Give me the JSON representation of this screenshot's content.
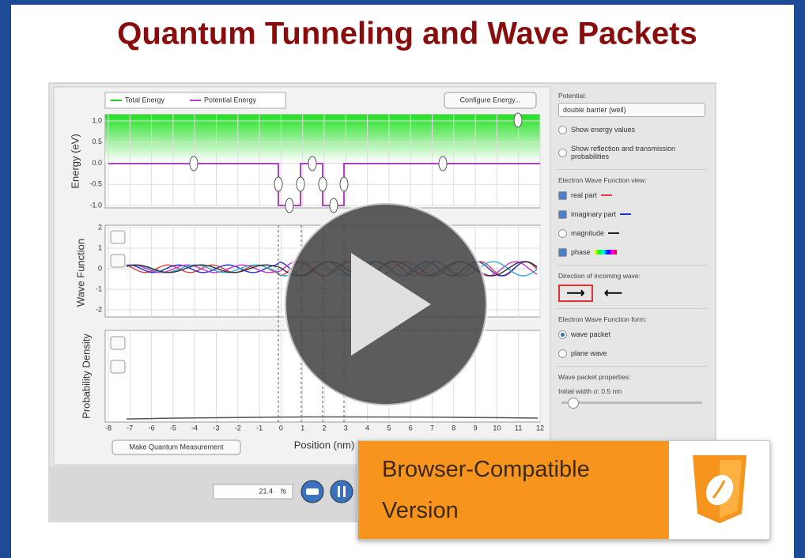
{
  "title": "Quantum Tunneling and Wave Packets",
  "simulation": {
    "legend": [
      "Total Energy",
      "Potential Energy"
    ],
    "configure_button": "Configure Energy...",
    "energy_axis": {
      "label": "Energy (eV)",
      "ticks": [
        "1.0",
        "0.5",
        "0.0",
        "-0.5",
        "-1.0"
      ]
    },
    "wave_axis": {
      "label": "Wave Function",
      "ticks": [
        "2",
        "1",
        "0",
        "-1",
        "-2"
      ]
    },
    "density_axis": {
      "label": "Probability Density"
    },
    "position_axis": {
      "label": "Position (nm)",
      "ticks": [
        "-8",
        "-7",
        "-6",
        "-5",
        "-4",
        "-3",
        "-2",
        "-1",
        "0",
        "1",
        "2",
        "3",
        "4",
        "5",
        "6",
        "7",
        "8",
        "9",
        "10",
        "11",
        "12"
      ]
    },
    "measure_button": "Make Quantum Measurement",
    "time": "21.4",
    "time_unit": "fs"
  },
  "controls": {
    "potential_label": "Potential:",
    "potential_select": "double barrier (well)",
    "show_energy": "Show energy values",
    "show_reflection": "Show reflection and transmission probabilities",
    "view_label": "Electron Wave Function view:",
    "view_options": [
      "real part",
      "imaginary part",
      "magnitude",
      "phase"
    ],
    "direction_label": "Direction of incoming wave:",
    "form_label": "Electron Wave Function form:",
    "form_options": [
      "wave packet",
      "plane wave"
    ],
    "packet_label": "Wave packet properties:",
    "width_label": "Initial width σ: 0.5 nm"
  },
  "banner": {
    "line1": "Browser-Compatible",
    "line2": "Version"
  }
}
